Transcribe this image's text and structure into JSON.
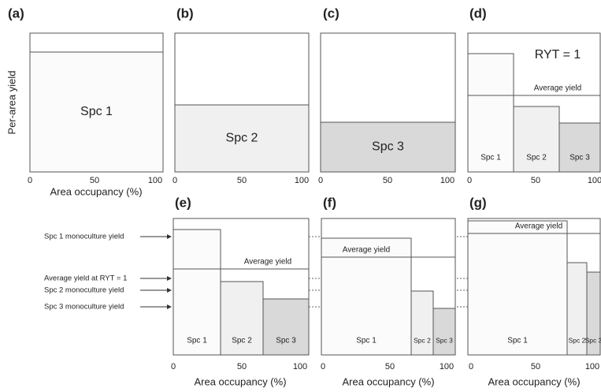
{
  "ylabel": "Per-area yield",
  "ryt": "RYT = 1",
  "annotations": [
    "Spc 1 monoculture yield",
    "Average yield at RYT = 1",
    "Spc 2 monoculture yield",
    "Spc 3 monoculture yield"
  ],
  "panels": [
    {
      "label": "(a)",
      "species": [
        "Spc 1"
      ],
      "xticks": [
        "0",
        "50",
        "100"
      ],
      "xlabel": "Area occupancy (%)"
    },
    {
      "label": "(b)",
      "species": [
        "Spc 2"
      ],
      "xticks": [
        "0",
        "50",
        "100"
      ]
    },
    {
      "label": "(c)",
      "species": [
        "Spc 3"
      ],
      "xticks": [
        "0",
        "50",
        "100"
      ]
    },
    {
      "label": "(d)",
      "species": [
        "Spc 1",
        "Spc 2",
        "Spc 3"
      ],
      "average": "Average yield",
      "xticks": [
        "0",
        "50",
        "100"
      ]
    },
    {
      "label": "(e)",
      "species": [
        "Spc 1",
        "Spc 2",
        "Spc 3"
      ],
      "average": "Average yield",
      "xticks": [
        "0",
        "50",
        "100"
      ],
      "xlabel": "Area occupancy (%)"
    },
    {
      "label": "(f)",
      "species": [
        "Spc 1",
        "Spc 2",
        "Spc 3"
      ],
      "average": "Average yield",
      "xticks": [
        "0",
        "50",
        "100"
      ],
      "xlabel": "Area occupancy (%)"
    },
    {
      "label": "(g)",
      "species": [
        "Spc 1",
        "Spc 2",
        "Spc 3"
      ],
      "average": "Average yield",
      "xticks": [
        "0",
        "50",
        "100"
      ],
      "xlabel": "Area occupancy (%)"
    }
  ]
}
